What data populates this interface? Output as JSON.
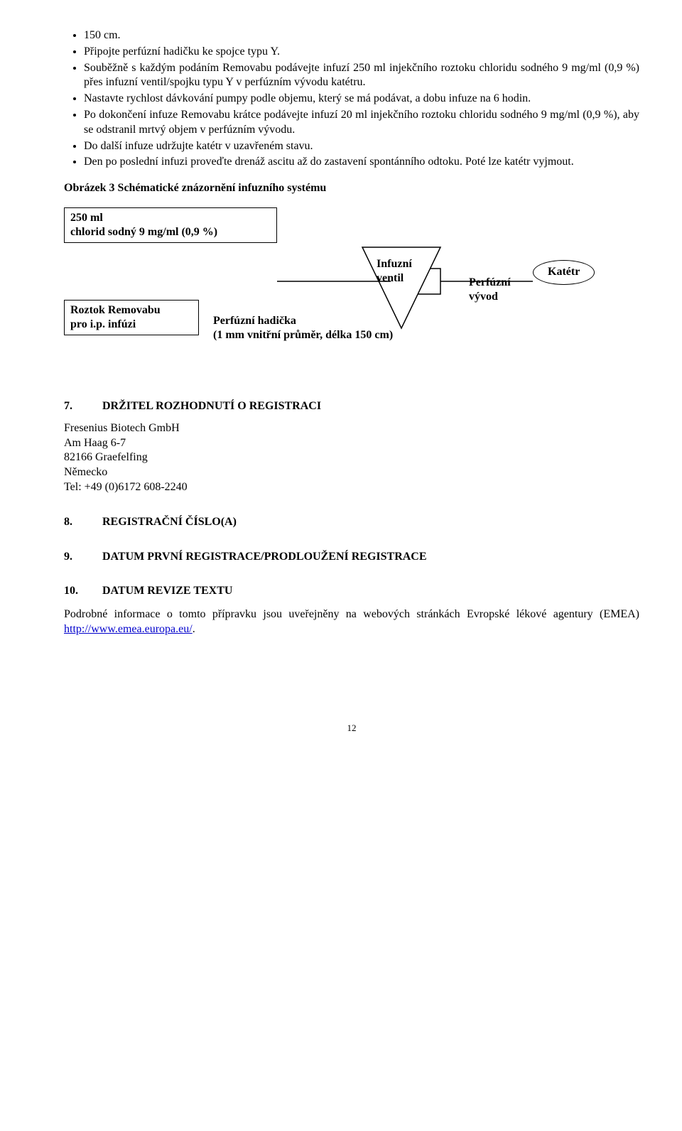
{
  "bullets": [
    "150 cm.",
    "Připojte perfúzní hadičku ke spojce typu Y.",
    "Souběžně s každým podáním Removabu podávejte infuzí 250 ml injekčního roztoku chloridu sodného 9 mg/ml (0,9 %) přes infuzní ventil/spojku typu Y v perfúzním vývodu katétru.",
    "Nastavte rychlost dávkování pumpy podle objemu, který se má podávat, a dobu infuze na 6 hodin.",
    "Po dokončení infuze Removabu krátce podávejte infuzí 20 ml injekčního roztoku chloridu sodného 9 mg/ml (0,9 %), aby se odstranil mrtvý objem v perfúzním vývodu.",
    "Do další infuze udržujte katétr v uzavřeném stavu.",
    "Den po poslední infuzi proveďte drenáž ascitu až do zastavení spontánního odtoku. Poté lze katétr vyjmout."
  ],
  "figure_caption": "Obrázek 3   Schématické znázornění infuzního systému",
  "diagram": {
    "box_saline": "250 ml\nchlorid sodný 9 mg/ml (0,9 %)",
    "box_removabu": "Roztok Removabu\npro i.p. infúzi",
    "tubing_label": "Perfúzní hadička\n(1 mm vnitřní průměr, délka 150 cm)",
    "valve_label": "Infuzní\nventil",
    "outlet_label": "Perfúzní\nvývod",
    "catheter_label": "Katétr"
  },
  "sections": {
    "s7": {
      "num": "7.",
      "title": "DRŽITEL ROZHODNUTÍ O REGISTRACI"
    },
    "s8": {
      "num": "8.",
      "title": "REGISTRAČNÍ ČÍSLO(A)"
    },
    "s9": {
      "num": "9.",
      "title": "DATUM PRVNÍ REGISTRACE/PRODLOUŽENÍ REGISTRACE"
    },
    "s10": {
      "num": "10.",
      "title": "DATUM REVIZE TEXTU"
    }
  },
  "address": {
    "l1": "Fresenius Biotech GmbH",
    "l2": "Am Haag 6-7",
    "l3": "82166 Graefelfing",
    "l4": "Německo",
    "l5": "Tel: +49 (0)6172 608-2240"
  },
  "closing": {
    "pre": "Podrobné informace o tomto přípravku jsou uveřejněny na webových stránkách Evropské lékové agentury (EMEA) ",
    "link": "http://www.emea.europa.eu/",
    "post": "."
  },
  "page_number": "12"
}
